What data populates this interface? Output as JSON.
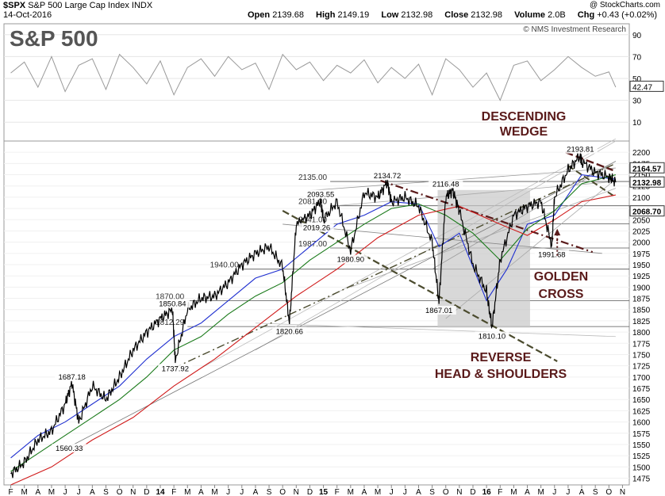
{
  "header": {
    "symbol": "$SPX",
    "name": "S&P 500 Large Cap Index",
    "exchange": "INDX",
    "date": "14-Oct-2016",
    "credit": "@ StockCharts.com",
    "open_label": "Open",
    "open": "2139.68",
    "high_label": "High",
    "high": "2149.19",
    "low_label": "Low",
    "low": "2132.98",
    "close_label": "Close",
    "close": "2132.98",
    "volume_label": "Volume",
    "volume": "2.0B",
    "chg_label": "Chg",
    "chg": "+0.43 (+0.02%)"
  },
  "panel_top": {
    "big_title": "S&P 500",
    "copyright": "© NMS Investment Research",
    "ticks": [
      "90",
      "70",
      "50",
      "30",
      "10"
    ],
    "current_value": "42.47"
  },
  "colors": {
    "price": "#000000",
    "ma_blue": "#1f2fd0",
    "ma_green": "#1a7a1a",
    "ma_red": "#d01a1a",
    "annotation": "#5a1a1a",
    "trend_olive": "#4b4b2e",
    "shade": "#c8c8c8"
  },
  "chart_data": {
    "type": "line",
    "title": "S&P 500",
    "y_axis_ticks": [
      2200,
      2175,
      2150,
      2125,
      2100,
      2075,
      2050,
      2025,
      2000,
      1975,
      1950,
      1925,
      1900,
      1875,
      1850,
      1825,
      1800,
      1775,
      1750,
      1725,
      1700,
      1675,
      1650,
      1625,
      1600,
      1575,
      1550,
      1525,
      1500,
      1475
    ],
    "ylim": [
      1460,
      2225
    ],
    "x_axis_labels": [
      "F",
      "M",
      "A",
      "M",
      "J",
      "J",
      "A",
      "S",
      "O",
      "N",
      "D",
      "14",
      "F",
      "M",
      "A",
      "M",
      "J",
      "J",
      "A",
      "S",
      "O",
      "N",
      "D",
      "15",
      "F",
      "M",
      "A",
      "M",
      "J",
      "J",
      "A",
      "S",
      "O",
      "N",
      "D",
      "16",
      "F",
      "M",
      "A",
      "M",
      "J",
      "J",
      "A",
      "S",
      "O",
      "N"
    ],
    "price_tags": [
      {
        "label": "2164.57",
        "value": 2164.57
      },
      {
        "label": "2132.98",
        "value": 2132.98
      },
      {
        "label": "2068.70",
        "value": 2068.7
      }
    ],
    "horizontal_levels": [
      {
        "label": "2135.00",
        "value": 2135
      },
      {
        "label": "2081.00",
        "value": 2081
      },
      {
        "label": "2041.00",
        "value": 2041
      },
      {
        "label": "1987.00",
        "value": 1987
      },
      {
        "label": "1940.00",
        "value": 1940
      },
      {
        "label": "1870.00",
        "value": 1870
      },
      {
        "label": "1812.29",
        "value": 1812.29
      }
    ],
    "point_labels": [
      {
        "label": "1687.18",
        "value": 1687.18,
        "month": 4.5
      },
      {
        "label": "1560.33",
        "value": 1560.33,
        "month": 4.3
      },
      {
        "label": "1850.84",
        "value": 1850.84,
        "month": 11.9
      },
      {
        "label": "1737.92",
        "value": 1737.92,
        "month": 12.1
      },
      {
        "label": "1820.66",
        "value": 1820.66,
        "month": 20.5
      },
      {
        "label": "2019.26",
        "value": 2019.26,
        "month": 22.5
      },
      {
        "label": "2093.55",
        "value": 2093.55,
        "month": 22.8
      },
      {
        "label": "1980.90",
        "value": 1980.9,
        "month": 25.0
      },
      {
        "label": "2134.72",
        "value": 2134.72,
        "month": 27.7
      },
      {
        "label": "2116.48",
        "value": 2116.48,
        "month": 32.0
      },
      {
        "label": "1867.01",
        "value": 1867.01,
        "month": 31.5
      },
      {
        "label": "1810.10",
        "value": 1810.1,
        "month": 35.4
      },
      {
        "label": "1991.68",
        "value": 1991.68,
        "month": 39.8
      },
      {
        "label": "2193.81",
        "value": 2193.81,
        "month": 41.9
      }
    ],
    "annotations": [
      "DESCENDING WEDGE",
      "GOLDEN CROSS",
      "REVERSE HEAD & SHOULDERS"
    ],
    "price_series": {
      "name": "$SPX",
      "months": [
        0,
        1,
        2,
        3,
        4,
        4.5,
        5,
        6,
        7,
        8,
        9,
        10,
        11,
        11.9,
        12.1,
        13,
        14,
        15,
        16,
        17,
        18,
        19,
        20,
        20.5,
        21,
        22,
        22.8,
        23,
        24,
        25,
        26,
        27,
        27.7,
        28,
        29,
        30,
        31,
        31.5,
        32,
        32.5,
        33,
        34,
        35,
        35.4,
        36,
        37,
        38,
        39,
        39.8,
        40,
        41,
        41.9,
        42,
        43,
        44,
        44.5
      ],
      "values": [
        1485,
        1510,
        1560,
        1580,
        1640,
        1687,
        1600,
        1680,
        1650,
        1700,
        1760,
        1800,
        1830,
        1850,
        1737,
        1850,
        1875,
        1880,
        1910,
        1950,
        1975,
        1990,
        1945,
        1820,
        2040,
        2060,
        2093,
        2050,
        2090,
        1980,
        2110,
        2100,
        2134,
        2090,
        2100,
        2080,
        2000,
        1867,
        2100,
        2116,
        2070,
        1950,
        1890,
        1810,
        1960,
        2060,
        2080,
        2090,
        1992,
        2100,
        2160,
        2193,
        2180,
        2155,
        2145,
        2133
      ]
    },
    "series": [
      {
        "name": "",
        "color": "#1f2fd0",
        "months": [
          0,
          2,
          4,
          6,
          8,
          10,
          12,
          14,
          16,
          18,
          20,
          22,
          24,
          26,
          28,
          30,
          31.5,
          33,
          35,
          36.5,
          38,
          40,
          42,
          44.5
        ],
        "values": [
          1520,
          1570,
          1600,
          1640,
          1680,
          1740,
          1790,
          1820,
          1870,
          1920,
          1940,
          1990,
          2040,
          2060,
          2090,
          2085,
          1990,
          2020,
          1870,
          1940,
          2040,
          2060,
          2150,
          2140
        ]
      },
      {
        "name": "",
        "color": "#1a7a1a",
        "months": [
          0,
          2,
          4,
          6,
          8,
          10,
          12,
          14,
          16,
          18,
          20,
          22,
          24,
          26,
          28,
          30,
          32,
          34,
          36,
          38,
          40,
          42,
          44.5
        ],
        "values": [
          1490,
          1530,
          1570,
          1610,
          1650,
          1700,
          1760,
          1790,
          1840,
          1880,
          1910,
          1960,
          2000,
          2040,
          2075,
          2085,
          2060,
          2020,
          1960,
          2030,
          2070,
          2130,
          2150
        ]
      },
      {
        "name": "",
        "color": "#d01a1a",
        "months": [
          0,
          3,
          6,
          9,
          12,
          15,
          18,
          21,
          24,
          27,
          30,
          33,
          36,
          38,
          40,
          42,
          44.5
        ],
        "values": [
          1460,
          1500,
          1560,
          1610,
          1680,
          1740,
          1810,
          1880,
          1940,
          2010,
          2060,
          2080,
          2040,
          2015,
          2050,
          2090,
          2105
        ]
      }
    ],
    "oscillator": {
      "name": "",
      "months": [
        0,
        1,
        2,
        3,
        4,
        5,
        6,
        7,
        8,
        9,
        10,
        11,
        12,
        13,
        14,
        15,
        16,
        17,
        18,
        19,
        20,
        21,
        22,
        23,
        24,
        25,
        26,
        27,
        28,
        29,
        30,
        31,
        32,
        33,
        34,
        35,
        36,
        37,
        38,
        39,
        40,
        41,
        42,
        43,
        44,
        44.5
      ],
      "values": [
        55,
        65,
        42,
        70,
        38,
        62,
        68,
        40,
        72,
        60,
        45,
        66,
        35,
        60,
        68,
        52,
        70,
        58,
        64,
        40,
        72,
        58,
        65,
        48,
        62,
        55,
        67,
        46,
        60,
        50,
        63,
        35,
        68,
        58,
        42,
        55,
        30,
        62,
        66,
        48,
        58,
        70,
        60,
        52,
        56,
        42
      ]
    }
  }
}
